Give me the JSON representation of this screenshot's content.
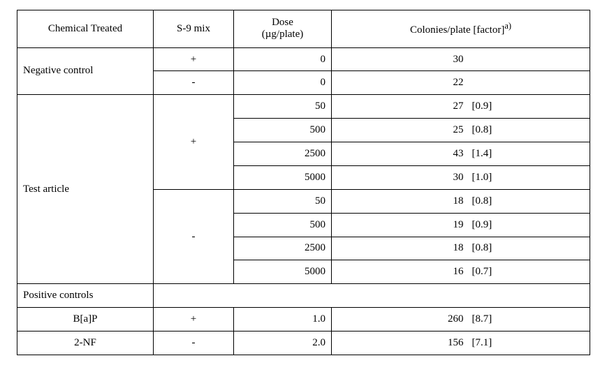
{
  "table": {
    "type": "table",
    "background_color": "#ffffff",
    "border_color": "#000000",
    "dotted_color": "#6b6b6b",
    "font_family": "Times New Roman",
    "font_size_pt": 11,
    "headers": {
      "chemical": "Chemical Treated",
      "s9": "S-9 mix",
      "dose_line1": "Dose",
      "dose_line2": "(µg/plate)",
      "result": "Colonies/plate [factor]",
      "result_sup": "a)"
    },
    "negative_control": {
      "label": "Negative control",
      "plus": {
        "s9": "+",
        "dose": "0",
        "count": "30",
        "factor": ""
      },
      "minus": {
        "s9": "-",
        "dose": "0",
        "count": "22",
        "factor": ""
      }
    },
    "test_article": {
      "label": "Test article",
      "plus": {
        "s9": "+",
        "rows": [
          {
            "dose": "50",
            "count": "27",
            "factor": "[0.9]"
          },
          {
            "dose": "500",
            "count": "25",
            "factor": "[0.8]"
          },
          {
            "dose": "2500",
            "count": "43",
            "factor": "[1.4]"
          },
          {
            "dose": "5000",
            "count": "30",
            "factor": "[1.0]"
          }
        ]
      },
      "minus": {
        "s9": "-",
        "rows": [
          {
            "dose": "50",
            "count": "18",
            "factor": "[0.8]"
          },
          {
            "dose": "500",
            "count": "19",
            "factor": "[0.9]"
          },
          {
            "dose": "2500",
            "count": "18",
            "factor": "[0.8]"
          },
          {
            "dose": "5000",
            "count": "16",
            "factor": "[0.7]"
          }
        ]
      }
    },
    "positive_controls": {
      "label": "Positive controls",
      "rows": [
        {
          "chem": "B[a]P",
          "s9": "+",
          "dose": "1.0",
          "count": "260",
          "factor": "[8.7]"
        },
        {
          "chem": "2-NF",
          "s9": "-",
          "dose": "2.0",
          "count": "156",
          "factor": "[7.1]"
        }
      ]
    }
  }
}
